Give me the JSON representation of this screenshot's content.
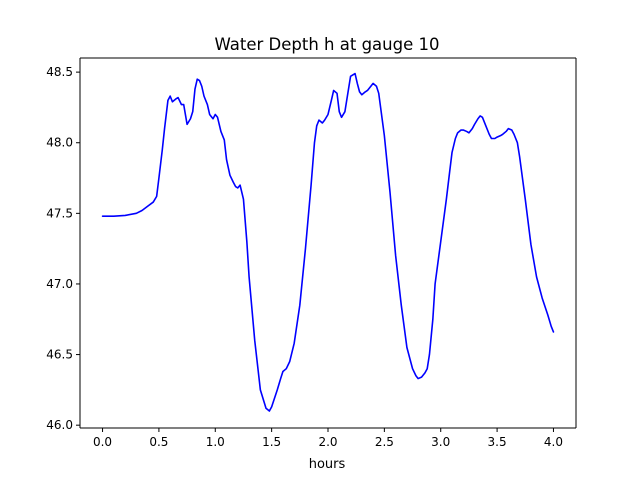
{
  "chart_data": {
    "type": "line",
    "title": "Water Depth h at gauge 10",
    "xlabel": "hours",
    "ylabel": "",
    "xlim": [
      -0.2,
      4.2
    ],
    "ylim": [
      45.98,
      48.6
    ],
    "xticks": [
      0.0,
      0.5,
      1.0,
      1.5,
      2.0,
      2.5,
      3.0,
      3.5,
      4.0
    ],
    "xtick_labels": [
      "0.0",
      "0.5",
      "1.0",
      "1.5",
      "2.0",
      "2.5",
      "3.0",
      "3.5",
      "4.0"
    ],
    "yticks": [
      46.0,
      46.5,
      47.0,
      47.5,
      48.0,
      48.5
    ],
    "ytick_labels": [
      "46.0",
      "46.5",
      "47.0",
      "47.5",
      "48.0",
      "48.5"
    ],
    "grid": false,
    "series": [
      {
        "color": "#0000ff",
        "x": [
          0.0,
          0.1,
          0.2,
          0.3,
          0.35,
          0.4,
          0.45,
          0.48,
          0.5,
          0.53,
          0.55,
          0.58,
          0.6,
          0.62,
          0.65,
          0.67,
          0.7,
          0.72,
          0.75,
          0.78,
          0.8,
          0.82,
          0.84,
          0.86,
          0.88,
          0.9,
          0.93,
          0.95,
          0.98,
          1.0,
          1.02,
          1.05,
          1.08,
          1.1,
          1.13,
          1.16,
          1.18,
          1.2,
          1.22,
          1.25,
          1.28,
          1.3,
          1.35,
          1.4,
          1.45,
          1.48,
          1.5,
          1.55,
          1.58,
          1.6,
          1.63,
          1.66,
          1.7,
          1.75,
          1.8,
          1.85,
          1.88,
          1.9,
          1.92,
          1.95,
          1.97,
          2.0,
          2.03,
          2.05,
          2.08,
          2.1,
          2.12,
          2.15,
          2.17,
          2.2,
          2.22,
          2.24,
          2.26,
          2.28,
          2.3,
          2.33,
          2.35,
          2.38,
          2.4,
          2.43,
          2.45,
          2.5,
          2.55,
          2.6,
          2.65,
          2.7,
          2.75,
          2.78,
          2.8,
          2.83,
          2.86,
          2.88,
          2.9,
          2.93,
          2.95,
          3.0,
          3.05,
          3.08,
          3.1,
          3.13,
          3.15,
          3.18,
          3.2,
          3.23,
          3.25,
          3.28,
          3.3,
          3.33,
          3.35,
          3.37,
          3.4,
          3.43,
          3.45,
          3.48,
          3.5,
          3.53,
          3.55,
          3.58,
          3.6,
          3.63,
          3.65,
          3.68,
          3.7,
          3.75,
          3.8,
          3.85,
          3.9,
          3.95,
          3.98,
          4.0
        ],
        "y": [
          47.48,
          47.48,
          47.485,
          47.5,
          47.52,
          47.55,
          47.58,
          47.62,
          47.75,
          47.95,
          48.1,
          48.3,
          48.33,
          48.29,
          48.31,
          48.32,
          48.27,
          48.27,
          48.13,
          48.17,
          48.22,
          48.38,
          48.45,
          48.44,
          48.4,
          48.33,
          48.27,
          48.2,
          48.17,
          48.2,
          48.18,
          48.08,
          48.02,
          47.88,
          47.77,
          47.72,
          47.69,
          47.68,
          47.7,
          47.6,
          47.3,
          47.05,
          46.6,
          46.25,
          46.12,
          46.1,
          46.13,
          46.25,
          46.33,
          46.38,
          46.4,
          46.45,
          46.58,
          46.85,
          47.25,
          47.7,
          48.0,
          48.12,
          48.16,
          48.14,
          48.16,
          48.2,
          48.3,
          48.37,
          48.35,
          48.22,
          48.18,
          48.22,
          48.32,
          48.47,
          48.48,
          48.49,
          48.42,
          48.36,
          48.34,
          48.36,
          48.37,
          48.4,
          48.42,
          48.4,
          48.35,
          48.05,
          47.65,
          47.2,
          46.85,
          46.55,
          46.4,
          46.35,
          46.33,
          46.34,
          46.37,
          46.4,
          46.5,
          46.75,
          47.0,
          47.3,
          47.6,
          47.8,
          47.93,
          48.03,
          48.07,
          48.09,
          48.09,
          48.08,
          48.07,
          48.1,
          48.13,
          48.17,
          48.19,
          48.18,
          48.12,
          48.06,
          48.03,
          48.03,
          48.04,
          48.05,
          48.06,
          48.08,
          48.1,
          48.09,
          48.06,
          48.0,
          47.9,
          47.6,
          47.28,
          47.05,
          46.9,
          46.78,
          46.7,
          46.66
        ]
      }
    ]
  }
}
